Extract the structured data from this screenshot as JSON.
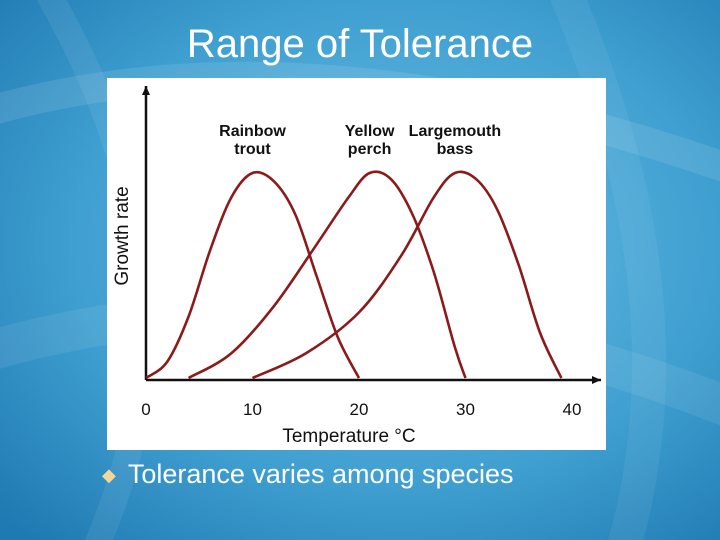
{
  "slide": {
    "title": "Range of Tolerance",
    "bullet": "Tolerance varies among species",
    "colors": {
      "background": "#4aa3d3",
      "curve": "#8b1a1a",
      "bullet": "#f2d69b"
    }
  },
  "chart_data": {
    "type": "line",
    "xlabel": "Temperature °C",
    "ylabel": "Growth rate",
    "xlim": [
      0,
      42
    ],
    "ylim": [
      0,
      100
    ],
    "xticks": [
      0,
      10,
      20,
      30,
      40
    ],
    "series": [
      {
        "name": "Rainbow trout",
        "label_lines": [
          "Rainbow",
          "trout"
        ],
        "x": [
          0,
          2,
          4,
          6,
          8,
          10,
          12,
          14,
          16,
          18,
          20
        ],
        "y": [
          0,
          8,
          30,
          62,
          88,
          100,
          96,
          80,
          50,
          20,
          0
        ]
      },
      {
        "name": "Yellow perch",
        "label_lines": [
          "Yellow",
          "perch"
        ],
        "x": [
          4,
          8,
          12,
          16,
          19,
          21,
          23,
          25,
          27,
          29,
          30
        ],
        "y": [
          0,
          12,
          35,
          65,
          88,
          100,
          97,
          80,
          52,
          15,
          0
        ]
      },
      {
        "name": "Largemouth bass",
        "label_lines": [
          "Largemouth",
          "bass"
        ],
        "x": [
          10,
          15,
          20,
          24,
          27,
          29,
          31,
          33,
          35,
          37,
          39
        ],
        "y": [
          0,
          12,
          32,
          60,
          88,
          100,
          97,
          82,
          55,
          22,
          0
        ]
      }
    ]
  }
}
